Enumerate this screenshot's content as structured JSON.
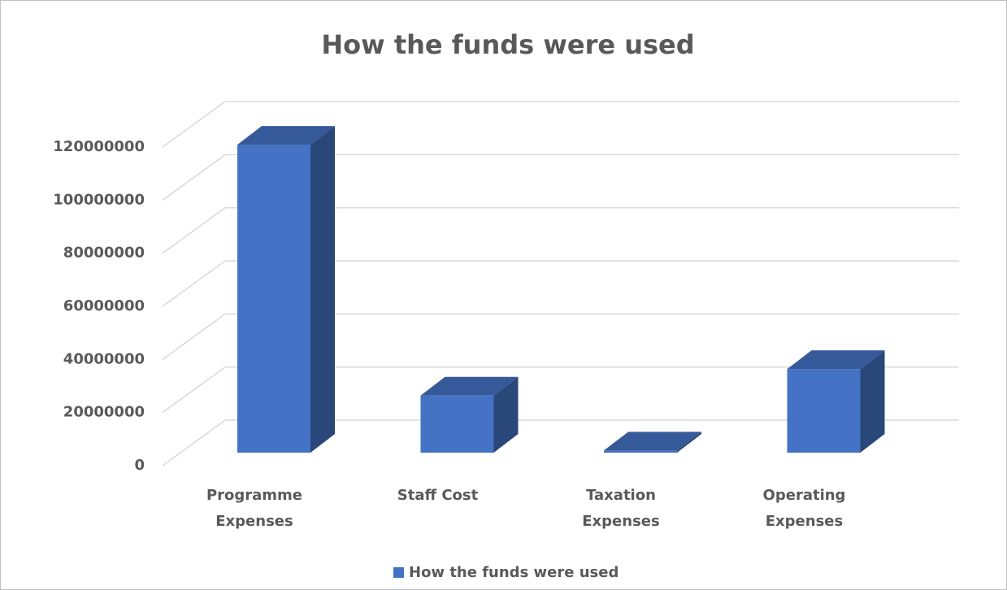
{
  "chart_data": {
    "type": "bar",
    "title": "How the funds were used",
    "categories": [
      "Programme Expenses",
      "Staff Cost",
      "Taxation Expenses",
      "Operating Expenses"
    ],
    "series": [
      {
        "name": "How the funds were used",
        "color": "#4472c4",
        "values": [
          116000000,
          21500000,
          800000,
          31500000
        ]
      }
    ],
    "ylim": [
      0,
      120000000
    ],
    "yticks": [
      0,
      20000000,
      40000000,
      60000000,
      80000000,
      100000000,
      120000000
    ],
    "grid": true,
    "legend": "bottom"
  }
}
